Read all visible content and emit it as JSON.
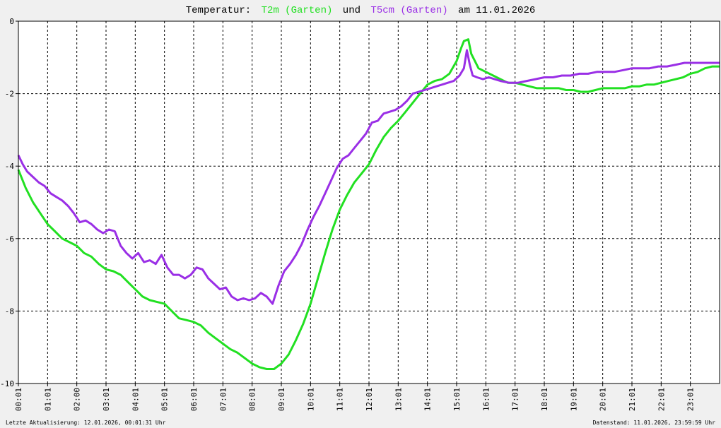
{
  "title": {
    "prefix": "Temperatur:",
    "series1": "T2m (Garten)",
    "mid": "und",
    "series2": "T5cm (Garten)",
    "suffix": "am 11.01.2026"
  },
  "footer": {
    "left": "Letzte Aktualisierung: 12.01.2026, 00:01:31 Uhr",
    "right": "Datenstand: 11.01.2026, 23:59:59 Uhr"
  },
  "colors": {
    "t2m": "#22e022",
    "t5cm": "#9a2fe6",
    "grid": "#000000",
    "background": "#f0f0f0",
    "plot": "#ffffff"
  },
  "chart_data": {
    "type": "line",
    "title": "Temperatur: T2m (Garten) und T5cm (Garten) am 11.01.2026",
    "xlabel": "",
    "ylabel": "",
    "ylim": [
      -10,
      0
    ],
    "yticks": [
      0,
      -2,
      -4,
      -6,
      -8,
      -10
    ],
    "xlim": [
      0,
      24
    ],
    "x_tick_labels": [
      "00:01",
      "01:01",
      "02:00",
      "03:01",
      "04:01",
      "05:01",
      "06:01",
      "07:01",
      "08:01",
      "09:01",
      "10:01",
      "11:01",
      "12:01",
      "13:01",
      "14:01",
      "15:01",
      "16:01",
      "17:01",
      "18:01",
      "19:01",
      "20:01",
      "21:01",
      "22:01",
      "23:01"
    ],
    "x_ticks_hours": [
      0,
      1,
      2,
      3,
      4,
      5,
      6,
      7,
      8,
      9,
      10,
      11,
      12,
      13,
      14,
      15,
      16,
      17,
      18,
      19,
      20,
      21,
      22,
      23
    ],
    "grid": true,
    "series": [
      {
        "name": "T2m (Garten)",
        "color": "#22e022",
        "x": [
          0,
          0.25,
          0.5,
          0.75,
          1,
          1.25,
          1.5,
          1.75,
          2,
          2.25,
          2.5,
          2.75,
          3,
          3.25,
          3.5,
          3.75,
          4,
          4.25,
          4.5,
          4.75,
          5,
          5.25,
          5.5,
          5.75,
          6,
          6.25,
          6.5,
          6.75,
          7,
          7.25,
          7.5,
          7.75,
          8,
          8.25,
          8.5,
          8.75,
          9,
          9.25,
          9.5,
          9.75,
          10,
          10.25,
          10.5,
          10.75,
          11,
          11.25,
          11.5,
          11.75,
          12,
          12.25,
          12.5,
          12.75,
          13,
          13.25,
          13.5,
          13.75,
          14,
          14.25,
          14.5,
          14.75,
          15,
          15.15,
          15.25,
          15.4,
          15.5,
          15.75,
          16,
          16.25,
          16.5,
          16.75,
          17,
          17.25,
          17.5,
          17.75,
          18,
          18.25,
          18.5,
          18.75,
          19,
          19.25,
          19.5,
          19.75,
          20,
          20.25,
          20.5,
          20.75,
          21,
          21.25,
          21.5,
          21.75,
          22,
          22.25,
          22.5,
          22.75,
          23,
          23.25,
          23.5,
          23.75,
          24
        ],
        "y": [
          -4.1,
          -4.6,
          -5.0,
          -5.3,
          -5.6,
          -5.8,
          -6.0,
          -6.1,
          -6.2,
          -6.4,
          -6.5,
          -6.7,
          -6.85,
          -6.9,
          -7.0,
          -7.2,
          -7.4,
          -7.6,
          -7.7,
          -7.75,
          -7.8,
          -8.0,
          -8.2,
          -8.25,
          -8.3,
          -8.4,
          -8.6,
          -8.75,
          -8.9,
          -9.05,
          -9.15,
          -9.3,
          -9.45,
          -9.55,
          -9.6,
          -9.6,
          -9.45,
          -9.2,
          -8.8,
          -8.35,
          -7.8,
          -7.1,
          -6.4,
          -5.75,
          -5.2,
          -4.8,
          -4.45,
          -4.2,
          -3.95,
          -3.55,
          -3.2,
          -2.95,
          -2.75,
          -2.5,
          -2.25,
          -2.0,
          -1.75,
          -1.65,
          -1.6,
          -1.45,
          -1.1,
          -0.75,
          -0.55,
          -0.5,
          -0.9,
          -1.3,
          -1.4,
          -1.5,
          -1.6,
          -1.7,
          -1.7,
          -1.75,
          -1.8,
          -1.85,
          -1.85,
          -1.85,
          -1.85,
          -1.9,
          -1.9,
          -1.95,
          -1.95,
          -1.9,
          -1.85,
          -1.85,
          -1.85,
          -1.85,
          -1.8,
          -1.8,
          -1.75,
          -1.75,
          -1.7,
          -1.65,
          -1.6,
          -1.55,
          -1.45,
          -1.4,
          -1.3,
          -1.25,
          -1.25
        ]
      },
      {
        "name": "T5cm (Garten)",
        "color": "#9a2fe6",
        "x": [
          0,
          0.15,
          0.3,
          0.5,
          0.7,
          0.9,
          1.1,
          1.3,
          1.5,
          1.7,
          1.9,
          2.1,
          2.3,
          2.5,
          2.7,
          2.9,
          3.1,
          3.3,
          3.5,
          3.7,
          3.9,
          4.1,
          4.3,
          4.5,
          4.7,
          4.9,
          5.1,
          5.3,
          5.5,
          5.7,
          5.9,
          6.1,
          6.3,
          6.5,
          6.7,
          6.9,
          7.1,
          7.3,
          7.5,
          7.7,
          7.9,
          8.1,
          8.3,
          8.5,
          8.7,
          8.9,
          9.1,
          9.3,
          9.5,
          9.7,
          9.9,
          10.1,
          10.3,
          10.5,
          10.7,
          10.9,
          11.1,
          11.3,
          11.5,
          11.7,
          11.9,
          12.1,
          12.3,
          12.5,
          12.7,
          12.9,
          13.1,
          13.3,
          13.5,
          13.7,
          13.9,
          14.1,
          14.3,
          14.5,
          14.7,
          14.9,
          15.1,
          15.25,
          15.35,
          15.45,
          15.55,
          15.7,
          15.9,
          16.1,
          16.3,
          16.5,
          16.8,
          17.1,
          17.4,
          17.7,
          18.0,
          18.3,
          18.6,
          18.9,
          19.2,
          19.5,
          19.8,
          20.1,
          20.4,
          20.7,
          21.0,
          21.3,
          21.6,
          21.9,
          22.2,
          22.5,
          22.8,
          23.1,
          23.4,
          23.7,
          24
        ],
        "y": [
          -3.7,
          -3.95,
          -4.15,
          -4.3,
          -4.45,
          -4.55,
          -4.75,
          -4.85,
          -4.95,
          -5.1,
          -5.3,
          -5.55,
          -5.5,
          -5.6,
          -5.75,
          -5.85,
          -5.75,
          -5.8,
          -6.2,
          -6.4,
          -6.55,
          -6.4,
          -6.65,
          -6.6,
          -6.7,
          -6.45,
          -6.8,
          -7.0,
          -7.0,
          -7.1,
          -7.0,
          -6.8,
          -6.85,
          -7.1,
          -7.25,
          -7.4,
          -7.35,
          -7.6,
          -7.7,
          -7.65,
          -7.7,
          -7.65,
          -7.5,
          -7.6,
          -7.8,
          -7.3,
          -6.9,
          -6.7,
          -6.45,
          -6.15,
          -5.75,
          -5.4,
          -5.1,
          -4.75,
          -4.4,
          -4.05,
          -3.8,
          -3.7,
          -3.5,
          -3.3,
          -3.1,
          -2.8,
          -2.75,
          -2.55,
          -2.5,
          -2.45,
          -2.35,
          -2.2,
          -2.0,
          -1.95,
          -1.9,
          -1.85,
          -1.8,
          -1.75,
          -1.7,
          -1.65,
          -1.5,
          -1.3,
          -0.8,
          -1.2,
          -1.5,
          -1.55,
          -1.6,
          -1.55,
          -1.6,
          -1.65,
          -1.7,
          -1.7,
          -1.65,
          -1.6,
          -1.55,
          -1.55,
          -1.5,
          -1.5,
          -1.45,
          -1.45,
          -1.4,
          -1.4,
          -1.4,
          -1.35,
          -1.3,
          -1.3,
          -1.3,
          -1.25,
          -1.25,
          -1.2,
          -1.15,
          -1.15,
          -1.15,
          -1.15,
          -1.15
        ]
      }
    ]
  }
}
